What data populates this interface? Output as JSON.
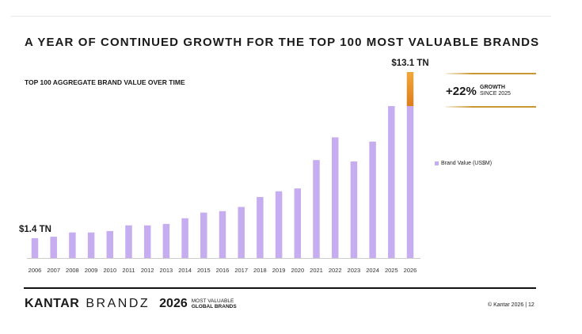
{
  "slide_title": "A YEAR OF CONTINUED GROWTH FOR THE TOP 100 MOST VALUABLE BRANDS",
  "growth": {
    "percent": "+22%",
    "word": "GROWTH",
    "since": "SINCE 2025"
  },
  "footer": {
    "brand_part1": "KANTAR",
    "brand_part2": "BRANDZ",
    "year": "2026",
    "tagline1": "MOST VALUABLE",
    "tagline2": "GLOBAL BRANDS",
    "copyright": "© Kantar 2026 | 12"
  },
  "colors": {
    "bar": "#c5adef",
    "growth_top": "#f0a83a",
    "growth_bottom": "#dd7e1e",
    "gold_rule": "#c9962f"
  },
  "chart_data": {
    "type": "bar",
    "title": "TOP 100 AGGREGATE BRAND VALUE OVER TIME",
    "categories": [
      "2006",
      "2007",
      "2008",
      "2009",
      "2010",
      "2011",
      "2012",
      "2013",
      "2014",
      "2015",
      "2016",
      "2017",
      "2018",
      "2019",
      "2020",
      "2021",
      "2022",
      "2023",
      "2024",
      "2025",
      "2026"
    ],
    "series": [
      {
        "name": "Brand Value (US$M)",
        "values": [
          1.4,
          1.5,
          1.8,
          1.8,
          1.9,
          2.3,
          2.3,
          2.4,
          2.8,
          3.2,
          3.3,
          3.6,
          4.3,
          4.7,
          4.9,
          6.9,
          8.5,
          6.8,
          8.2,
          10.7,
          13.1
        ]
      }
    ],
    "growth_segment": {
      "category": "2026",
      "from": 10.7,
      "to": 13.1
    },
    "annotations": [
      {
        "category": "2006",
        "text": "$1.4 TN"
      },
      {
        "category": "2026",
        "text": "$13.1 TN"
      }
    ],
    "ylim": [
      0,
      13.1
    ],
    "grid": false,
    "legend": "right"
  }
}
